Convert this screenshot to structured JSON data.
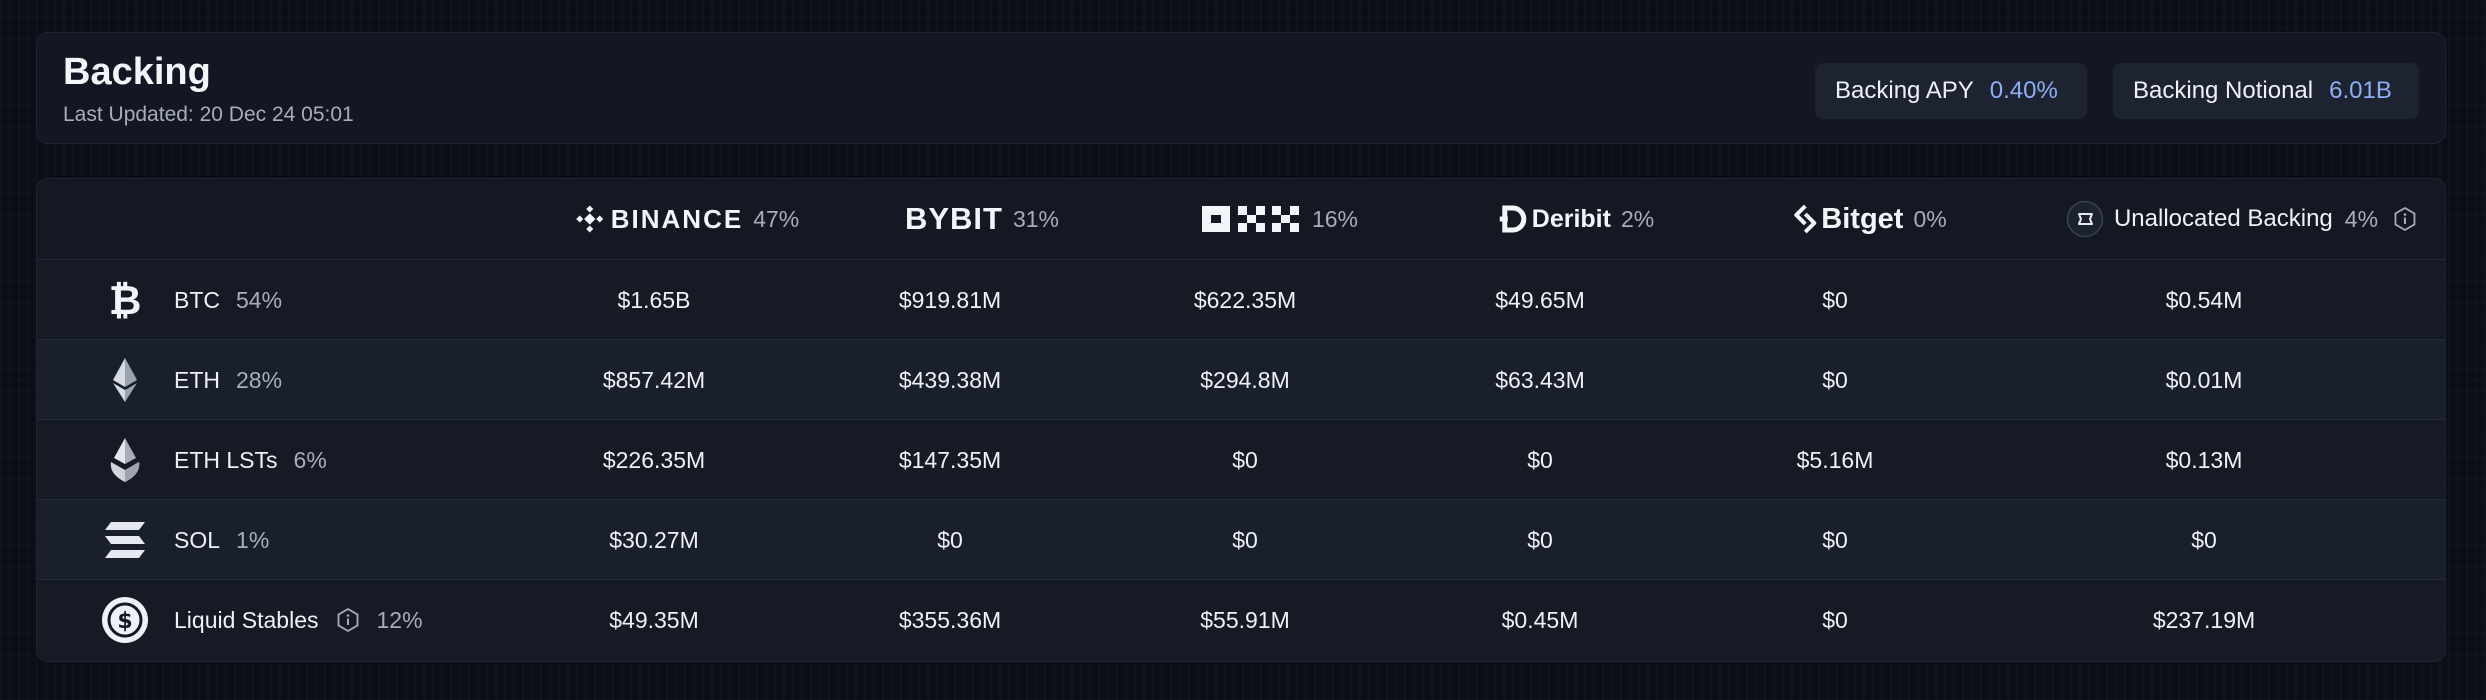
{
  "header": {
    "title": "Backing",
    "last_updated": "Last Updated: 20 Dec 24 05:01",
    "apy_label": "Backing APY",
    "apy_value": "0.40%",
    "notional_label": "Backing Notional",
    "notional_value": "6.01B"
  },
  "columns": [
    {
      "name": "BINANCE",
      "pct": "47%",
      "icon": "binance-icon"
    },
    {
      "name": "BYBIT",
      "pct": "31%",
      "icon": "bybit-logo"
    },
    {
      "name": "OKX",
      "pct": "16%",
      "icon": "okx-logo"
    },
    {
      "name": "Deribit",
      "pct": "2%",
      "icon": "deribit-icon"
    },
    {
      "name": "Bitget",
      "pct": "0%",
      "icon": "bitget-icon"
    },
    {
      "name": "Unallocated Backing",
      "pct": "4%",
      "icon": "unallocated-icon"
    }
  ],
  "rows": [
    {
      "asset": "BTC",
      "pct": "54%",
      "icon": "bitcoin-icon",
      "values": [
        "$1.65B",
        "$919.81M",
        "$622.35M",
        "$49.65M",
        "$0",
        "$0.54M"
      ]
    },
    {
      "asset": "ETH",
      "pct": "28%",
      "icon": "ethereum-icon",
      "values": [
        "$857.42M",
        "$439.38M",
        "$294.8M",
        "$63.43M",
        "$0",
        "$0.01M"
      ]
    },
    {
      "asset": "ETH LSTs",
      "pct": "6%",
      "icon": "eth-lst-icon",
      "values": [
        "$226.35M",
        "$147.35M",
        "$0",
        "$0",
        "$5.16M",
        "$0.13M"
      ]
    },
    {
      "asset": "SOL",
      "pct": "1%",
      "icon": "solana-icon",
      "values": [
        "$30.27M",
        "$0",
        "$0",
        "$0",
        "$0",
        "$0"
      ]
    },
    {
      "asset": "Liquid Stables",
      "pct": "12%",
      "icon": "usdc-icon",
      "values": [
        "$49.35M",
        "$355.36M",
        "$55.91M",
        "$0.45M",
        "$0",
        "$237.19M"
      ]
    }
  ],
  "colors": {
    "accent": "#8eaef5",
    "muted": "#a7adba",
    "card": "#131822"
  }
}
